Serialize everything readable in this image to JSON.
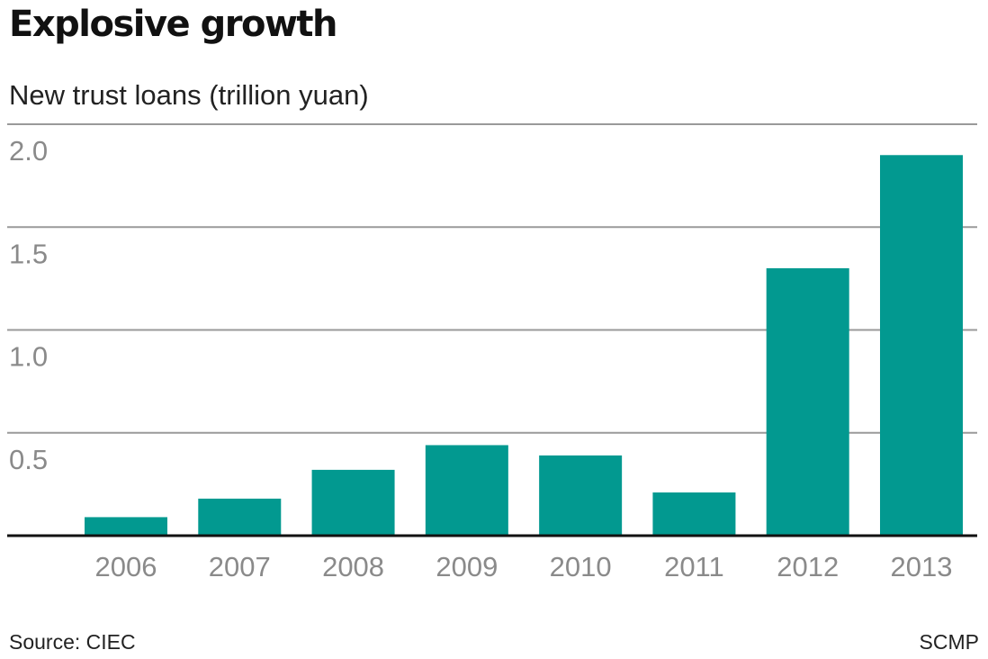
{
  "title": "Explosive growth",
  "subtitle": "New trust loans (trillion yuan)",
  "source": "Source: CIEC",
  "credit": "SCMP",
  "colors": {
    "bar": "#029990",
    "grid": "#9a9a9a",
    "axis": "#111111",
    "tick_text": "#8a8a8a"
  },
  "chart_data": {
    "type": "bar",
    "title": "Explosive growth",
    "subtitle": "New trust loans (trillion yuan)",
    "xlabel": "",
    "ylabel": "",
    "categories": [
      "2006",
      "2007",
      "2008",
      "2009",
      "2010",
      "2011",
      "2012",
      "2013"
    ],
    "values": [
      0.09,
      0.18,
      0.32,
      0.44,
      0.39,
      0.21,
      1.3,
      1.85
    ],
    "ylim": [
      0,
      2.0
    ],
    "yticks": [
      "0.5",
      "1.0",
      "1.5",
      "2.0"
    ],
    "ytick_values": [
      0.5,
      1.0,
      1.5,
      2.0
    ],
    "grid": true,
    "legend": "none"
  }
}
